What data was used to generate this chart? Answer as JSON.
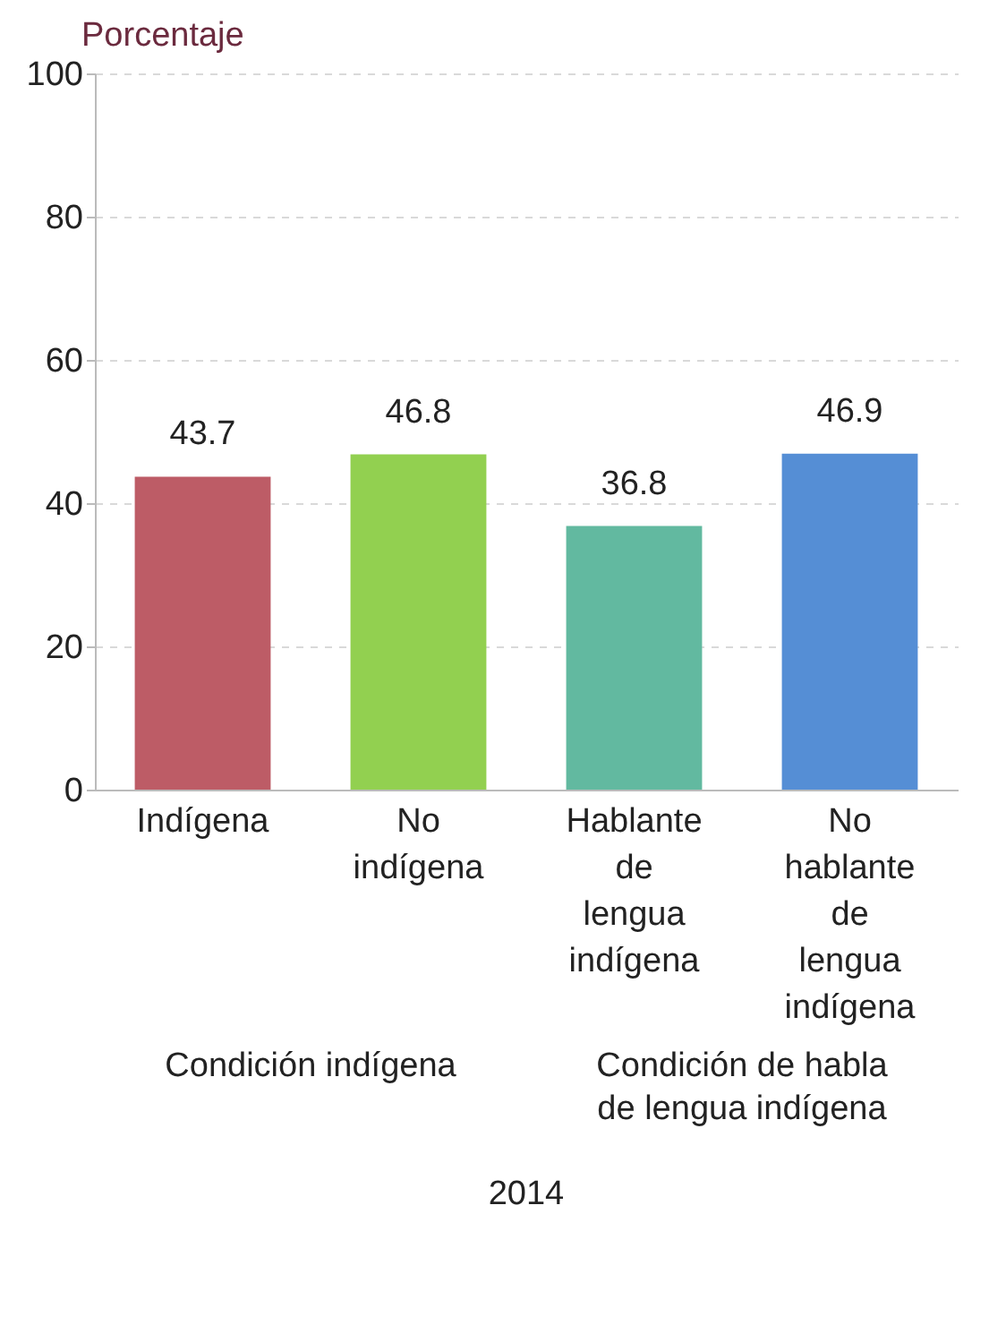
{
  "chart_data": {
    "type": "bar",
    "ylabel": "Porcentaje",
    "categories": [
      "Indígena",
      "No indígena",
      "Hablante de lengua indígena",
      "No hablante de lengua indígena"
    ],
    "values": [
      43.7,
      46.8,
      36.8,
      46.9
    ],
    "colors": [
      "#bd5c66",
      "#92d050",
      "#62b9a0",
      "#558ed5"
    ],
    "ylim": [
      0,
      100
    ],
    "yticks": [
      0,
      20,
      40,
      60,
      80,
      100
    ],
    "grid": "y",
    "data_labels": true,
    "annotations": [
      "Condición indígena",
      "Condición de habla de lengua indígena",
      "2014"
    ]
  }
}
